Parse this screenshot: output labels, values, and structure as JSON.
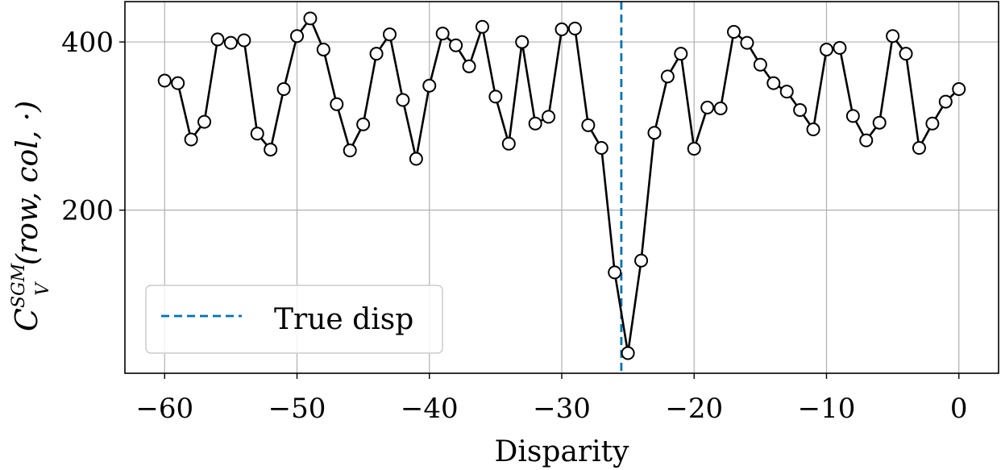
{
  "chart_data": {
    "type": "line",
    "xlabel": "Disparity",
    "ylabel": {
      "base": "C",
      "subscript": "V",
      "superscript": "SGM",
      "args": "(row, col, ·)"
    },
    "xlim": [
      -63,
      3
    ],
    "ylim": [
      6,
      448
    ],
    "xticks": [
      -60,
      -50,
      -40,
      -30,
      -20,
      -10,
      0
    ],
    "xtick_labels": [
      "−60",
      "−50",
      "−40",
      "−30",
      "−20",
      "−10",
      "0"
    ],
    "yticks": [
      200,
      400
    ],
    "ytick_labels": [
      "200",
      "400"
    ],
    "grid": true,
    "legend": {
      "placement": "lower-left",
      "entries": [
        "True disp"
      ]
    },
    "reference_line": {
      "name": "True disp",
      "x": -25.5,
      "style": "dashed",
      "color": "#0072b2"
    },
    "series": [
      {
        "color": "#000000",
        "marker": "open-circle",
        "x": [
          -60,
          -59,
          -58,
          -57,
          -56,
          -55,
          -54,
          -53,
          -52,
          -51,
          -50,
          -49,
          -48,
          -47,
          -46,
          -45,
          -44,
          -43,
          -42,
          -41,
          -40,
          -39,
          -38,
          -37,
          -36,
          -35,
          -34,
          -33,
          -32,
          -31,
          -30,
          -29,
          -28,
          -27,
          -26,
          -25,
          -24,
          -23,
          -22,
          -21,
          -20,
          -19,
          -18,
          -17,
          -16,
          -15,
          -14,
          -13,
          -12,
          -11,
          -10,
          -9,
          -8,
          -7,
          -6,
          -5,
          -4,
          -3,
          -2,
          -1,
          0
        ],
        "y": [
          354,
          351,
          284,
          305,
          403,
          399,
          402,
          291,
          272,
          344,
          407,
          428,
          391,
          326,
          271,
          302,
          386,
          409,
          331,
          261,
          348,
          410,
          396,
          371,
          418,
          335,
          279,
          400,
          303,
          311,
          415,
          416,
          301,
          274,
          126,
          30,
          140,
          292,
          359,
          386,
          273,
          322,
          321,
          412,
          399,
          373,
          351,
          341,
          319,
          296,
          391,
          393,
          312,
          283,
          304,
          407,
          386,
          274,
          303,
          329,
          344
        ]
      }
    ]
  }
}
